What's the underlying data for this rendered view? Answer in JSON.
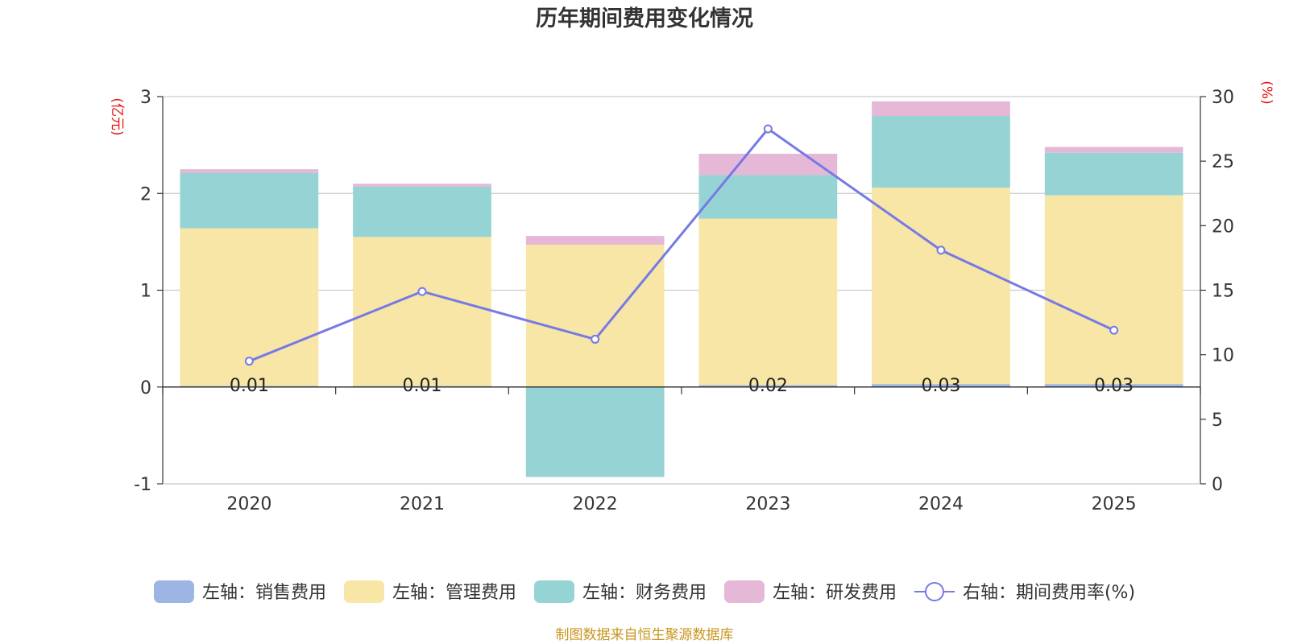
{
  "chart_data": {
    "type": "bar",
    "stacked": true,
    "title": "历年期间费用变化情况",
    "left_axis_unit": "(亿元)",
    "right_axis_unit": "(%)",
    "categories": [
      "2020",
      "2021",
      "2022",
      "2023",
      "2024",
      "2025"
    ],
    "left_axis": {
      "min": -1,
      "max": 3,
      "ticks": [
        "-1",
        "0",
        "1",
        "2",
        "3"
      ]
    },
    "right_axis": {
      "min": 0,
      "max": 30,
      "ticks": [
        "0",
        "5",
        "10",
        "15",
        "20",
        "25",
        "30"
      ]
    },
    "series": [
      {
        "name": "左轴：销售费用",
        "axis": "left",
        "color": "#9db5e3",
        "values": [
          0.01,
          0.01,
          0.0,
          0.02,
          0.03,
          0.03
        ],
        "labels": [
          "0.01",
          "0.01",
          "",
          "0.02",
          "0.03",
          "0.03"
        ]
      },
      {
        "name": "左轴：管理费用",
        "axis": "left",
        "color": "#f7e6a6",
        "values": [
          1.63,
          1.54,
          1.47,
          1.72,
          2.03,
          1.95
        ]
      },
      {
        "name": "左轴：财务费用",
        "axis": "left",
        "color": "#96d3d4",
        "values": [
          0.57,
          0.52,
          -0.93,
          0.45,
          0.74,
          0.44
        ]
      },
      {
        "name": "左轴：研发费用",
        "axis": "left",
        "color": "#e6b8d8",
        "values": [
          0.04,
          0.03,
          0.09,
          0.22,
          0.15,
          0.06
        ]
      },
      {
        "name": "右轴：期间费用率(%)",
        "axis": "right",
        "type": "line",
        "color": "#7679e6",
        "values": [
          9.5,
          14.9,
          11.2,
          27.5,
          18.1,
          11.9
        ]
      }
    ]
  },
  "source": "制图数据来自恒生聚源数据库"
}
